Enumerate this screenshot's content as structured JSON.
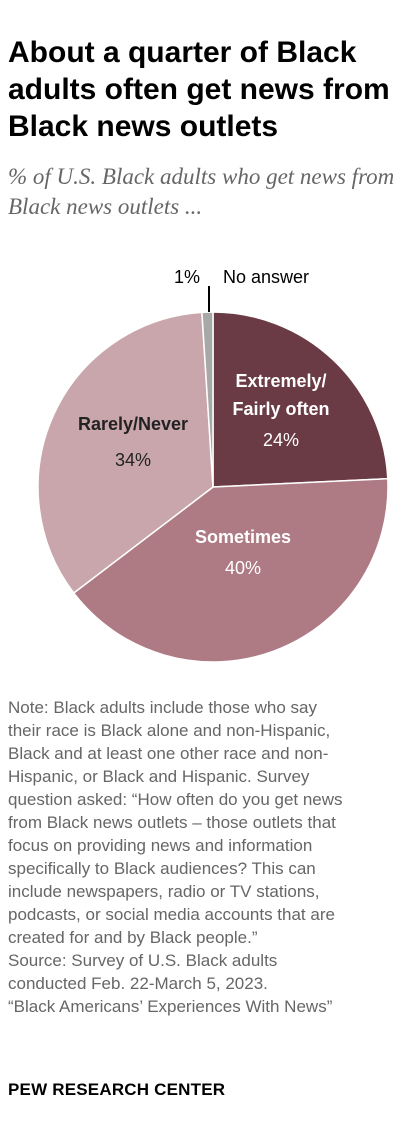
{
  "header": {
    "title": "About a quarter of Black adults often get news from Black news outlets",
    "subtitle": "% of U.S. Black adults who get news from Black news outlets ..."
  },
  "colors": {
    "extremely_fairly_often": "#6b3b45",
    "sometimes": "#ae7b85",
    "rarely_never": "#c8a6ab",
    "no_answer": "#a8a8a8"
  },
  "chart_data": {
    "type": "pie",
    "title": "About a quarter of Black adults often get news from Black news outlets",
    "subtitle": "% of U.S. Black adults who get news from Black news outlets ...",
    "slices": [
      {
        "label": "Extremely/ Fairly often",
        "label_lines": [
          "Extremely/",
          "Fairly often"
        ],
        "value": 24,
        "value_label": "24%",
        "color": "#6b3b45"
      },
      {
        "label": "Sometimes",
        "label_lines": [
          "Sometimes"
        ],
        "value": 40,
        "value_label": "40%",
        "color": "#ae7b85"
      },
      {
        "label": "Rarely/Never",
        "label_lines": [
          "Rarely/Never"
        ],
        "value": 34,
        "value_label": "34%",
        "color": "#c8a6ab"
      },
      {
        "label": "No answer",
        "label_lines": [
          "No answer"
        ],
        "value": 1,
        "value_label": "1%",
        "color": "#a8a8a8"
      }
    ],
    "start": "12 o'clock",
    "direction": "clockwise"
  },
  "note": {
    "lines": [
      "Note: Black adults include those who say",
      "their race is Black alone and non-Hispanic,",
      "Black and at least one other race and non-",
      "Hispanic, or Black and Hispanic. Survey",
      "question asked: “How often do you get news",
      "from Black news outlets – those outlets that",
      "focus on providing news and information",
      "specifically to Black audiences? This can",
      "include newspapers, radio or TV stations,",
      "podcasts, or social media accounts that are",
      "created for and by Black people.”",
      "Source: Survey of U.S. Black adults",
      "conducted Feb. 22-March 5, 2023.",
      "“Black Americans’ Experiences With News”"
    ]
  },
  "footer": {
    "org": "PEW RESEARCH CENTER"
  }
}
